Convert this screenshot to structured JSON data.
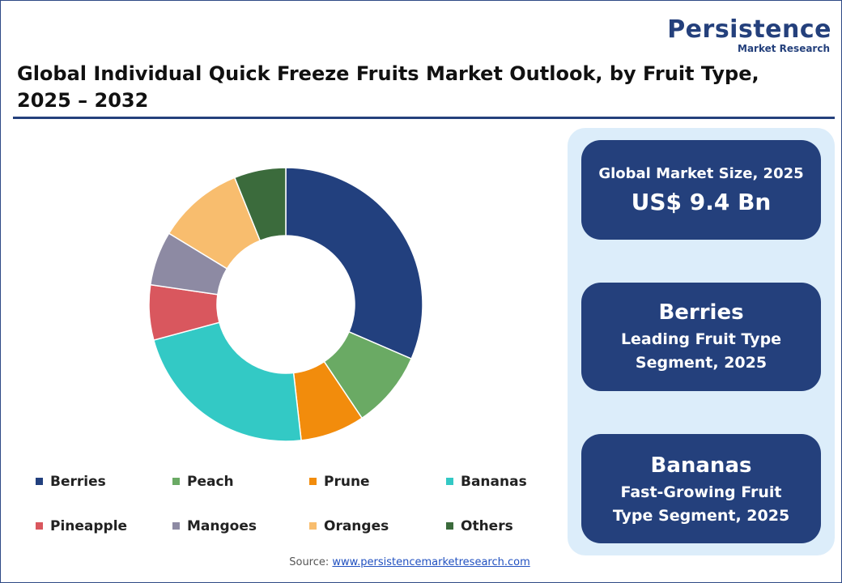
{
  "header": {
    "logo": "Persistence",
    "logo_tagline": "Market Research"
  },
  "chart_data": {
    "type": "donut",
    "title": "Global Individual Quick Freeze Fruits Market Outlook, by Fruit Type, 2025 – 2032",
    "categories": [
      "Berries",
      "Peach",
      "Prune",
      "Bananas",
      "Pineapple",
      "Mangoes",
      "Oranges",
      "Others"
    ],
    "values": [
      31.5,
      9.1,
      7.6,
      22.6,
      6.5,
      6.4,
      10.2,
      6.1
    ],
    "colors": [
      "#22407e",
      "#6aaa64",
      "#f28c0c",
      "#33c9c5",
      "#d9575e",
      "#8d8aa3",
      "#f8bd6e",
      "#3b6b3c"
    ]
  },
  "cards": [
    {
      "label": "Global Market Size, 2025",
      "value": "US$ 9.4 Bn"
    },
    {
      "value": "Berries",
      "label": "Leading Fruit Type Segment, 2025"
    },
    {
      "value": "Bananas",
      "label": "Fast-Growing Fruit Type Segment, 2025"
    }
  ],
  "footer": {
    "source_label": "Source:",
    "source_url": "www.persistencemarketresearch.com"
  }
}
